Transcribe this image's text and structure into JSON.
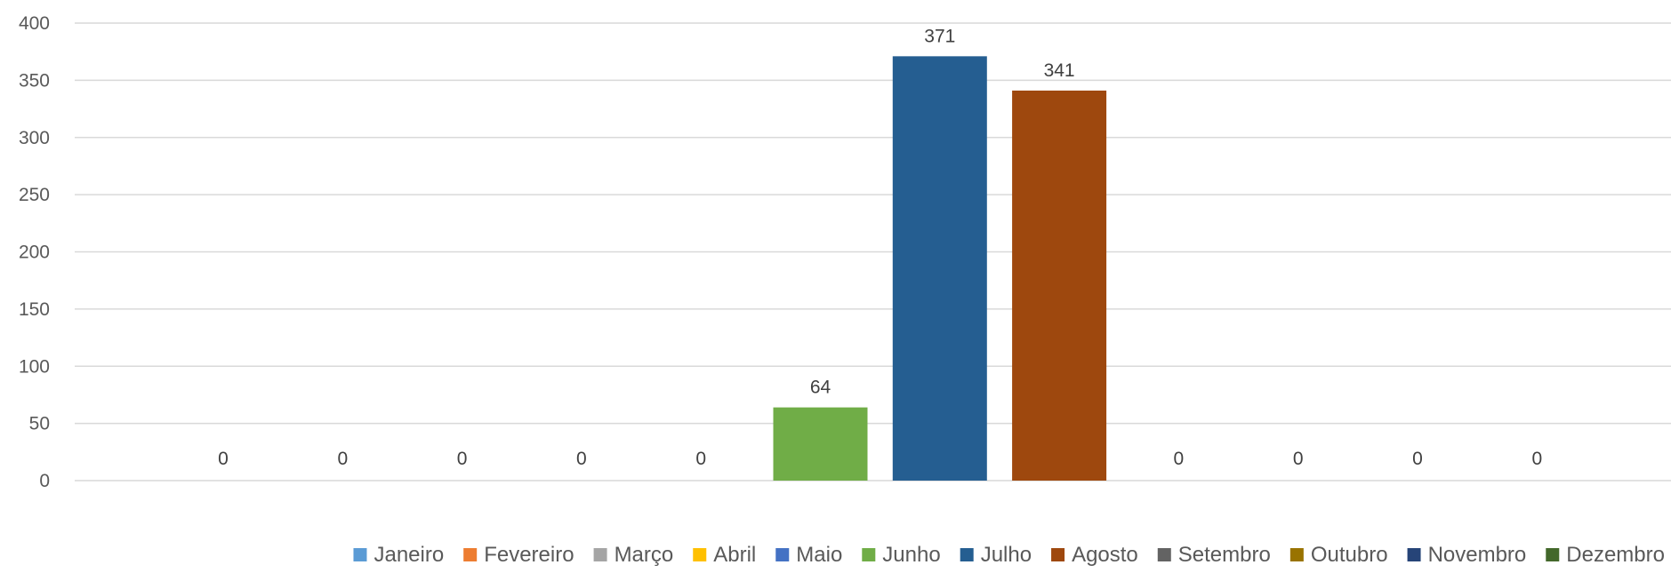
{
  "chart_data": {
    "type": "bar",
    "title": "",
    "xlabel": "",
    "ylabel": "",
    "ylim": [
      0,
      400
    ],
    "yticks": [
      0,
      50,
      100,
      150,
      200,
      250,
      300,
      350,
      400
    ],
    "grid": true,
    "legend_position": "bottom",
    "series": [
      {
        "name": "Janeiro",
        "value": 0,
        "color": "#5B9BD5"
      },
      {
        "name": "Fevereiro",
        "value": 0,
        "color": "#ED7D31"
      },
      {
        "name": "Março",
        "value": 0,
        "color": "#A5A5A5"
      },
      {
        "name": "Abril",
        "value": 0,
        "color": "#FFC000"
      },
      {
        "name": "Maio",
        "value": 0,
        "color": "#4472C4"
      },
      {
        "name": "Junho",
        "value": 64,
        "color": "#70AD47"
      },
      {
        "name": "Julho",
        "value": 371,
        "color": "#255E91"
      },
      {
        "name": "Agosto",
        "value": 341,
        "color": "#9E480E"
      },
      {
        "name": "Setembro",
        "value": 0,
        "color": "#636363"
      },
      {
        "name": "Outubro",
        "value": 0,
        "color": "#997300"
      },
      {
        "name": "Novembro",
        "value": 0,
        "color": "#264478"
      },
      {
        "name": "Dezembro",
        "value": 0,
        "color": "#43682B"
      }
    ]
  }
}
